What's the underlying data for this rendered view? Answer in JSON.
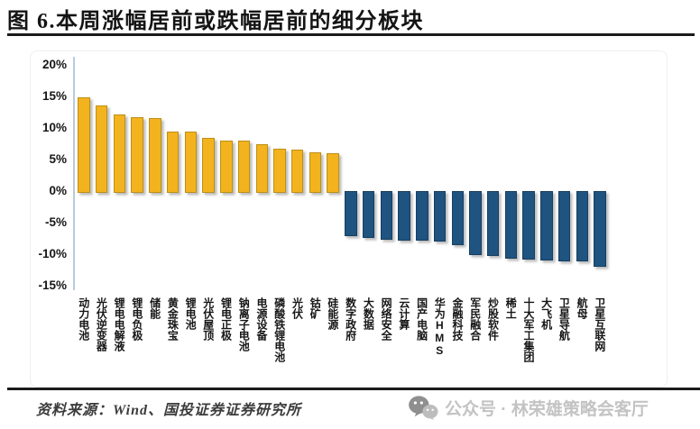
{
  "title": "图 6.本周涨幅居前或跌幅居前的细分板块",
  "chart_data": {
    "type": "bar",
    "title": "本周涨幅居前或跌幅居前的细分板块",
    "categories": [
      "动力电池",
      "光伏逆变器",
      "锂电电解液",
      "锂电负极",
      "储能",
      "黄金珠宝",
      "锂电池",
      "光伏屋顶",
      "锂电正极",
      "钠离子电池",
      "电源设备",
      "磷酸铁锂电池",
      "光伏",
      "钴矿",
      "硅能源",
      "数字政府",
      "大数据",
      "网络安全",
      "云计算",
      "国产电脑",
      "华为HMS",
      "金融科技",
      "军民融合",
      "炒股软件",
      "稀土",
      "十大军工集团",
      "大飞机",
      "卫星导航",
      "航母",
      "卫星互联网"
    ],
    "values": [
      14.8,
      13.6,
      12.1,
      11.7,
      11.6,
      9.5,
      9.4,
      8.4,
      8.0,
      8.0,
      7.5,
      6.7,
      6.6,
      6.1,
      6.0,
      -6.9,
      -7.1,
      -7.4,
      -7.6,
      -7.5,
      -7.7,
      -8.3,
      -9.8,
      -10.0,
      -10.4,
      -10.5,
      -10.7,
      -10.8,
      -10.9,
      -11.7
    ],
    "xlabel": "",
    "ylabel": "",
    "ylim": [
      -15,
      20
    ],
    "ytick_labels": [
      "20%",
      "15%",
      "10%",
      "5%",
      "0%",
      "-5%",
      "-10%",
      "-15%"
    ],
    "grid": false,
    "legend": "none",
    "positive_color": "#F2B31E",
    "negative_color": "#1F5380"
  },
  "footer": {
    "source_label": "资料来源：Wind、国投证券证券研究所",
    "watermark_label": "公众号 · 林荣雄策略会客厅",
    "watermark_icon": "wechat-icon"
  }
}
